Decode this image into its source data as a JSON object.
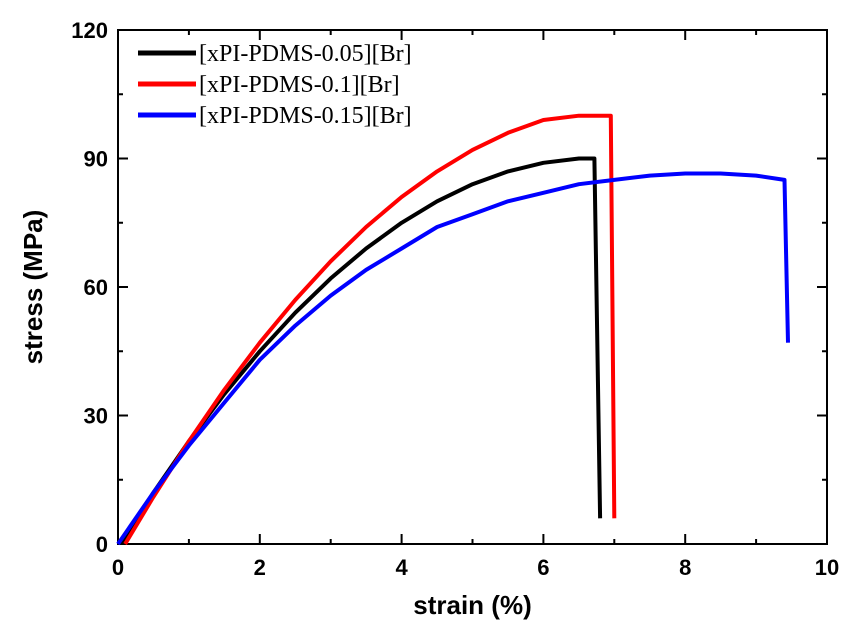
{
  "chart_data": {
    "type": "line",
    "title": "",
    "xlabel": "strain (%)",
    "ylabel": "stress (MPa)",
    "xlim": [
      0,
      10
    ],
    "ylim": [
      0,
      120
    ],
    "xticks": [
      0,
      2,
      4,
      6,
      8,
      10
    ],
    "yticks": [
      0,
      30,
      60,
      90,
      120
    ],
    "x_tick_labels": [
      "0",
      "2",
      "4",
      "6",
      "8",
      "10"
    ],
    "y_tick_labels": [
      "0",
      "30",
      "60",
      "90",
      "120"
    ],
    "grid": false,
    "legend_position": "top-left",
    "series": [
      {
        "name": "[xPI-PDMS-0.05][Br]",
        "color": "#000000",
        "x": [
          0.05,
          0.5,
          1.0,
          1.5,
          2.0,
          2.5,
          3.0,
          3.5,
          4.0,
          4.5,
          5.0,
          5.5,
          6.0,
          6.5,
          6.7,
          6.72,
          6.8
        ],
        "y": [
          0,
          12,
          24,
          35,
          45,
          54,
          62,
          69,
          75,
          80,
          84,
          87,
          89,
          90,
          90,
          90,
          6
        ]
      },
      {
        "name": "[xPI-PDMS-0.1][Br]",
        "color": "#ff0000",
        "x": [
          0.1,
          0.5,
          1.0,
          1.5,
          2.0,
          2.5,
          3.0,
          3.5,
          4.0,
          4.5,
          5.0,
          5.5,
          6.0,
          6.5,
          6.8,
          6.95,
          7.0
        ],
        "y": [
          0,
          11,
          24,
          36,
          47,
          57,
          66,
          74,
          81,
          87,
          92,
          96,
          99,
          100,
          100,
          100,
          6
        ]
      },
      {
        "name": "[xPI-PDMS-0.15][Br]",
        "color": "#0000ff",
        "x": [
          0.0,
          0.5,
          1.0,
          1.5,
          2.0,
          2.5,
          3.0,
          3.5,
          4.0,
          4.5,
          5.0,
          5.5,
          6.0,
          6.5,
          7.0,
          7.5,
          8.0,
          8.5,
          9.0,
          9.4,
          9.45
        ],
        "y": [
          0,
          12,
          23,
          33,
          43,
          51,
          58,
          64,
          69,
          74,
          77,
          80,
          82,
          84,
          85,
          86,
          86.5,
          86.5,
          86,
          85,
          47
        ]
      }
    ]
  }
}
